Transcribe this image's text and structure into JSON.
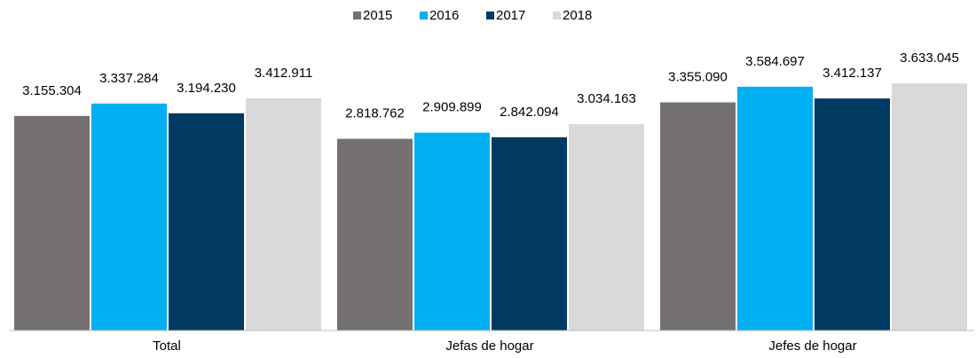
{
  "chart_data": {
    "type": "bar",
    "categories": [
      "Total",
      "Jefas de hogar",
      "Jefes de hogar"
    ],
    "series": [
      {
        "name": "2015",
        "color": "#767171",
        "values": [
          3155304,
          2818762,
          3355090
        ],
        "value_labels": [
          "3.155.304",
          "2.818.762",
          "3.355.090"
        ]
      },
      {
        "name": "2016",
        "color": "#00b0f0",
        "values": [
          3337284,
          2909899,
          3584697
        ],
        "value_labels": [
          "3.337.284",
          "2.909.899",
          "3.584.697"
        ]
      },
      {
        "name": "2017",
        "color": "#003a63",
        "values": [
          3194230,
          2842094,
          3412137
        ],
        "value_labels": [
          "3.194.230",
          "2.842.094",
          "3.412.137"
        ]
      },
      {
        "name": "2018",
        "color": "#d9d9d9",
        "values": [
          3412911,
          3034163,
          3633045
        ],
        "value_labels": [
          "3.412.911",
          "3.034.163",
          "3.633.045"
        ]
      }
    ],
    "ylim": [
      0,
      4000000
    ],
    "legend": "top"
  }
}
